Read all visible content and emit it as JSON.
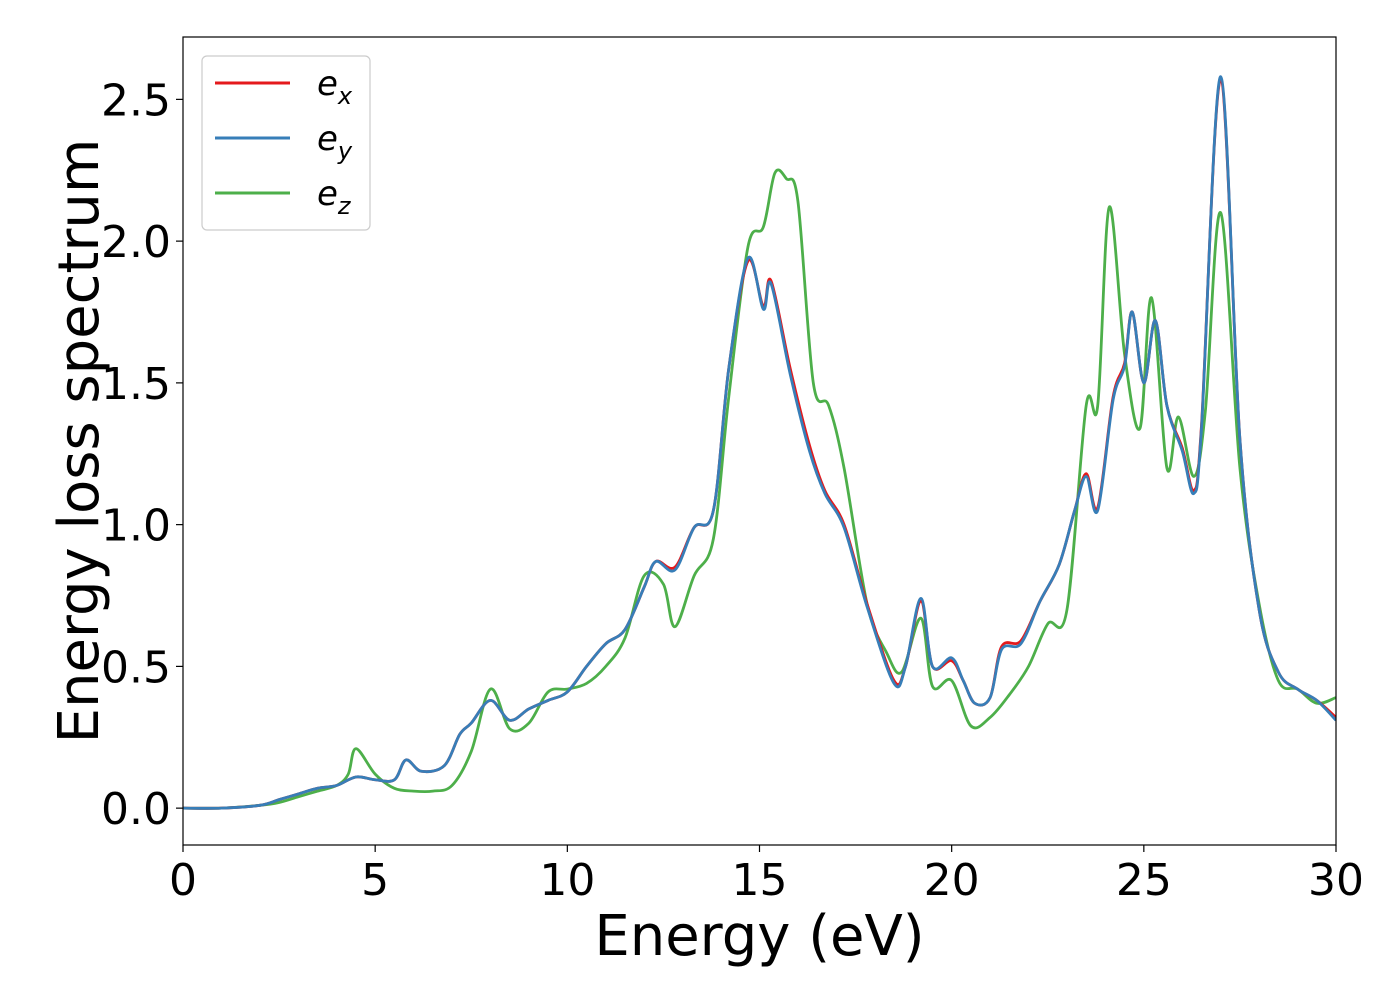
{
  "chart_data": {
    "type": "line",
    "xlabel": "Energy (eV)",
    "ylabel": "Energy loss spectrum",
    "xlim": [
      0,
      30
    ],
    "ylim": [
      -0.13,
      2.72
    ],
    "xticks": [
      0,
      5,
      10,
      15,
      20,
      25,
      30
    ],
    "xtick_labels": [
      "0",
      "5",
      "10",
      "15",
      "20",
      "25",
      "30"
    ],
    "yticks": [
      0.0,
      0.5,
      1.0,
      1.5,
      2.0,
      2.5
    ],
    "ytick_labels": [
      "0.0",
      "0.5",
      "1.0",
      "1.5",
      "2.0",
      "2.5"
    ],
    "grid": false,
    "legend_position": "top-left",
    "series": [
      {
        "name": "e",
        "subscript": "x",
        "color": "#e41a1c",
        "x": [
          0,
          1,
          2,
          2.5,
          3,
          3.5,
          4,
          4.5,
          5,
          5.5,
          5.8,
          6.2,
          6.8,
          7.2,
          7.5,
          8,
          8.5,
          9,
          9.5,
          10,
          10.5,
          11,
          11.5,
          12,
          12.3,
          12.8,
          13.3,
          13.8,
          14.2,
          14.7,
          15.1,
          15.3,
          15.8,
          16.3,
          16.7,
          17.2,
          17.8,
          18.5,
          18.8,
          19.2,
          19.5,
          20,
          20.3,
          20.6,
          21,
          21.3,
          21.8,
          22.3,
          22.8,
          23.2,
          23.5,
          23.8,
          24.2,
          24.5,
          24.7,
          25,
          25.3,
          25.6,
          26,
          26.3,
          26.5,
          27,
          27.5,
          28,
          28.5,
          29,
          29.5,
          30
        ],
        "values": [
          0,
          0,
          0.01,
          0.03,
          0.05,
          0.07,
          0.08,
          0.11,
          0.1,
          0.1,
          0.17,
          0.13,
          0.15,
          0.26,
          0.3,
          0.38,
          0.31,
          0.35,
          0.38,
          0.41,
          0.5,
          0.58,
          0.63,
          0.78,
          0.87,
          0.85,
          0.99,
          1.05,
          1.55,
          1.93,
          1.77,
          1.86,
          1.55,
          1.28,
          1.12,
          1.0,
          0.72,
          0.45,
          0.5,
          0.73,
          0.5,
          0.52,
          0.45,
          0.37,
          0.39,
          0.57,
          0.59,
          0.73,
          0.86,
          1.05,
          1.18,
          1.06,
          1.45,
          1.57,
          1.75,
          1.5,
          1.72,
          1.42,
          1.27,
          1.12,
          1.35,
          2.57,
          1.3,
          0.7,
          0.48,
          0.42,
          0.38,
          0.32
        ]
      },
      {
        "name": "e",
        "subscript": "y",
        "color": "#377eb8",
        "x": [
          0,
          1,
          2,
          2.5,
          3,
          3.5,
          4,
          4.5,
          5,
          5.5,
          5.8,
          6.2,
          6.8,
          7.2,
          7.5,
          8,
          8.5,
          9,
          9.5,
          10,
          10.5,
          11,
          11.5,
          12,
          12.3,
          12.8,
          13.3,
          13.8,
          14.2,
          14.7,
          15.1,
          15.3,
          15.8,
          16.3,
          16.7,
          17.2,
          17.8,
          18.5,
          18.8,
          19.2,
          19.5,
          20,
          20.3,
          20.6,
          21,
          21.3,
          21.8,
          22.3,
          22.8,
          23.2,
          23.5,
          23.8,
          24.2,
          24.5,
          24.7,
          25,
          25.3,
          25.6,
          26,
          26.3,
          26.5,
          27,
          27.5,
          28,
          28.5,
          29,
          29.5,
          30
        ],
        "values": [
          0,
          0,
          0.01,
          0.03,
          0.05,
          0.07,
          0.08,
          0.11,
          0.1,
          0.1,
          0.17,
          0.13,
          0.15,
          0.26,
          0.3,
          0.38,
          0.31,
          0.35,
          0.38,
          0.41,
          0.5,
          0.58,
          0.63,
          0.78,
          0.87,
          0.84,
          0.99,
          1.05,
          1.55,
          1.94,
          1.76,
          1.85,
          1.53,
          1.26,
          1.11,
          0.99,
          0.71,
          0.44,
          0.5,
          0.74,
          0.5,
          0.53,
          0.45,
          0.37,
          0.39,
          0.56,
          0.58,
          0.73,
          0.86,
          1.05,
          1.17,
          1.05,
          1.44,
          1.56,
          1.75,
          1.5,
          1.72,
          1.42,
          1.26,
          1.11,
          1.34,
          2.58,
          1.3,
          0.7,
          0.48,
          0.42,
          0.38,
          0.31
        ]
      },
      {
        "name": "e",
        "subscript": "z",
        "color": "#4daf4a",
        "x": [
          0,
          1,
          2,
          2.5,
          3,
          3.5,
          4,
          4.3,
          4.5,
          5,
          5.5,
          6,
          6.5,
          7,
          7.5,
          8,
          8.5,
          9,
          9.5,
          10,
          10.5,
          11,
          11.5,
          12,
          12.5,
          12.8,
          13.3,
          13.8,
          14.2,
          14.7,
          15.1,
          15.4,
          15.7,
          16,
          16.4,
          16.8,
          17.2,
          17.8,
          18.3,
          18.7,
          19.2,
          19.5,
          20,
          20.5,
          21,
          21.5,
          22,
          22.5,
          23,
          23.5,
          23.8,
          24.1,
          24.5,
          24.9,
          25.2,
          25.6,
          25.9,
          26.3,
          26.6,
          27,
          27.5,
          28,
          28.5,
          29,
          29.5,
          30
        ],
        "values": [
          0,
          0,
          0.01,
          0.02,
          0.04,
          0.06,
          0.08,
          0.12,
          0.21,
          0.12,
          0.07,
          0.06,
          0.06,
          0.08,
          0.2,
          0.42,
          0.28,
          0.3,
          0.41,
          0.42,
          0.44,
          0.5,
          0.6,
          0.82,
          0.79,
          0.64,
          0.82,
          0.95,
          1.45,
          1.98,
          2.05,
          2.24,
          2.22,
          2.14,
          1.5,
          1.42,
          1.2,
          0.72,
          0.55,
          0.48,
          0.67,
          0.43,
          0.45,
          0.29,
          0.32,
          0.4,
          0.5,
          0.65,
          0.7,
          1.42,
          1.42,
          2.12,
          1.6,
          1.34,
          1.8,
          1.2,
          1.38,
          1.17,
          1.4,
          2.1,
          1.2,
          0.72,
          0.45,
          0.42,
          0.37,
          0.39
        ]
      }
    ]
  }
}
